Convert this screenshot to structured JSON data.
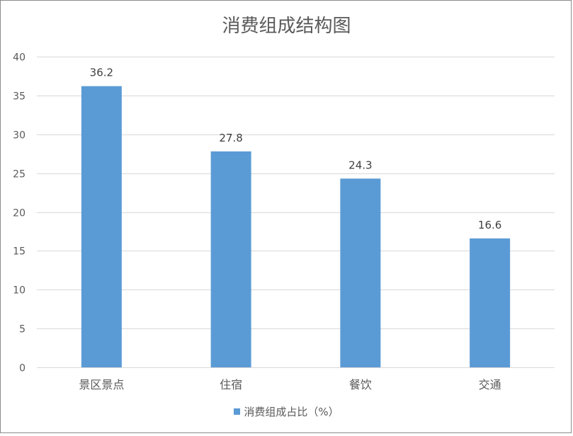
{
  "chart_data": {
    "type": "bar",
    "title": "消费组成结构图",
    "categories": [
      "景区景点",
      "住宿",
      "餐饮",
      "交通"
    ],
    "series": [
      {
        "name": "消费组成占比（%）",
        "values": [
          36.2,
          27.8,
          24.3,
          16.6
        ]
      }
    ],
    "ylim": [
      0,
      40
    ],
    "yticks": [
      0,
      5,
      10,
      15,
      20,
      25,
      30,
      35,
      40
    ],
    "data_labels": true,
    "grid": true,
    "legend": "bottom",
    "xlabel": "",
    "ylabel": ""
  },
  "colors": {
    "bar": "#5b9bd5",
    "grid": "#d9d9d9",
    "text": "#595959"
  }
}
